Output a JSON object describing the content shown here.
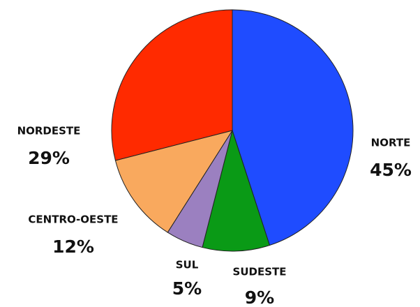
{
  "chart_data": {
    "type": "pie",
    "categories": [
      "NORTE",
      "SUDESTE",
      "SUL",
      "CENTRO-OESTE",
      "NORDESTE"
    ],
    "values": [
      45,
      9,
      5,
      12,
      29
    ],
    "value_labels": [
      "45%",
      "9%",
      "5%",
      "12%",
      "29%"
    ],
    "colors": [
      "#1f4cff",
      "#0a9a16",
      "#9b80c0",
      "#f9a95e",
      "#ff2a00"
    ],
    "start_angle": 0,
    "direction": "clockwise"
  }
}
